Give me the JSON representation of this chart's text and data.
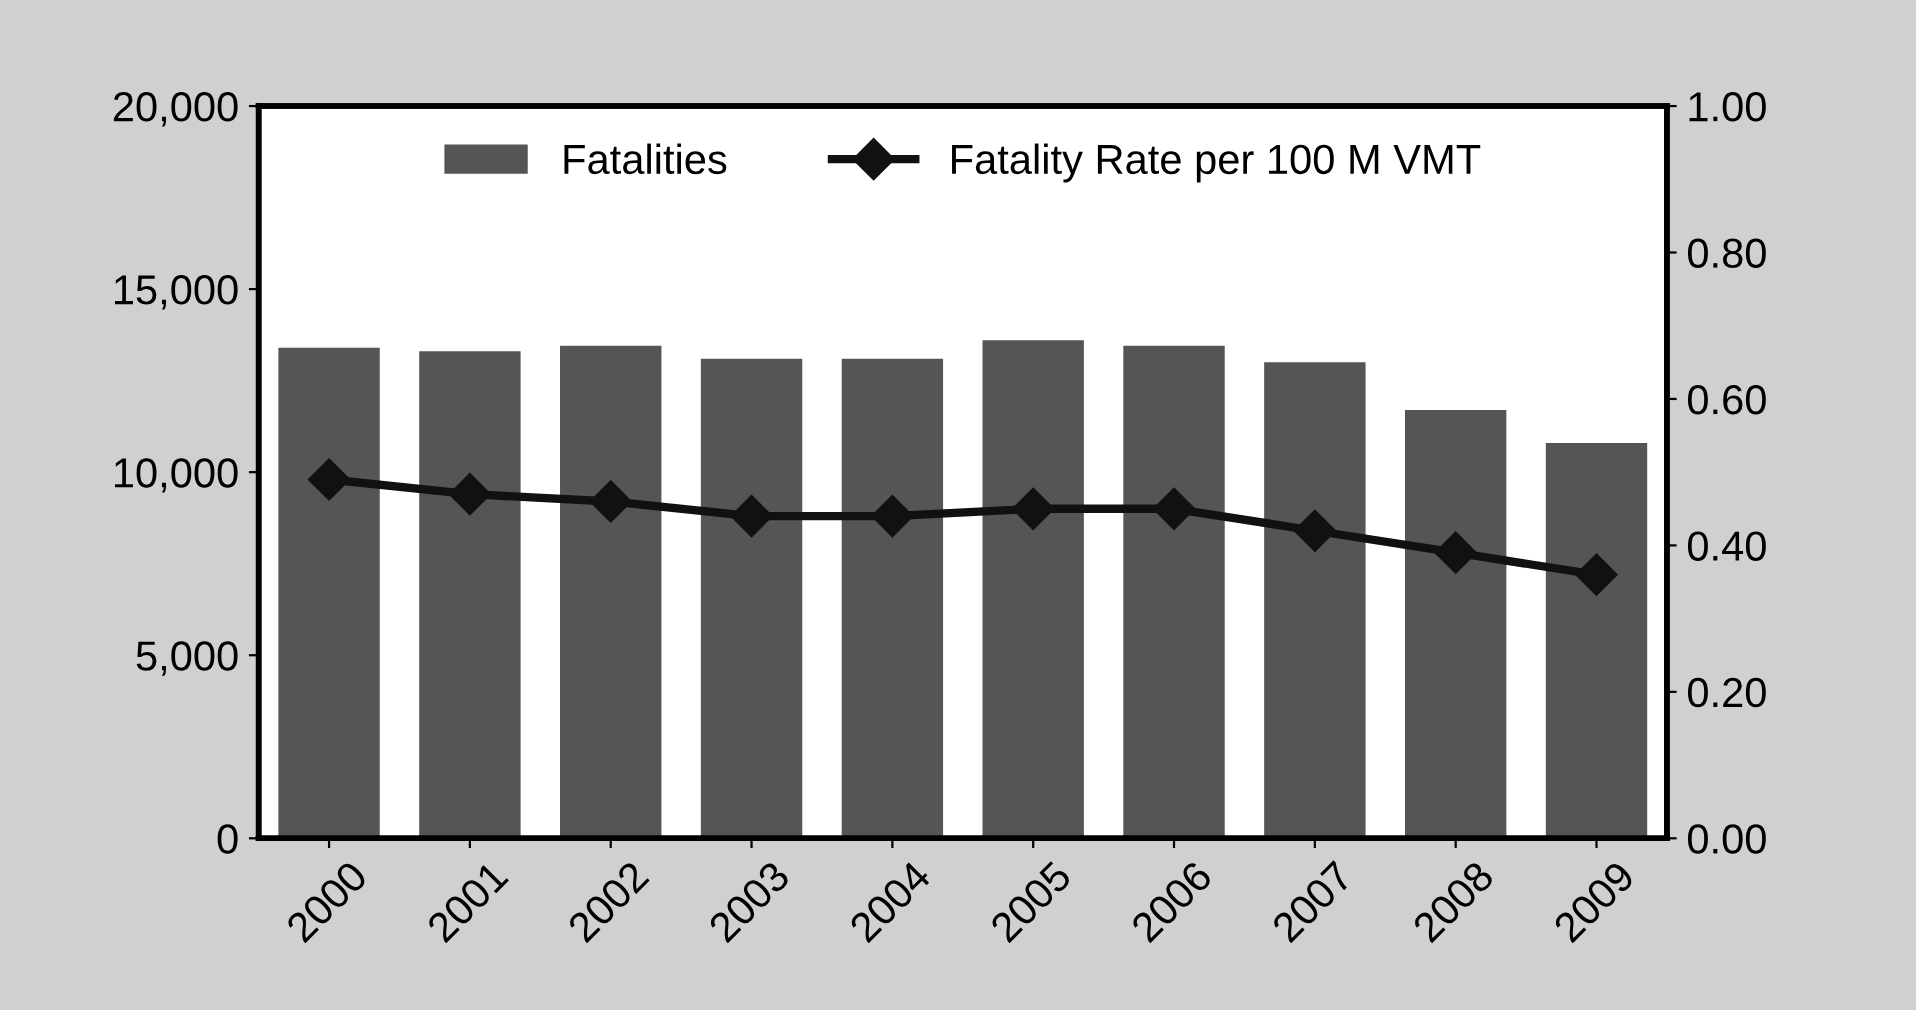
{
  "chart_data": {
    "type": "bar",
    "categories": [
      "2000",
      "2001",
      "2002",
      "2003",
      "2004",
      "2005",
      "2006",
      "2007",
      "2008",
      "2009"
    ],
    "series": [
      {
        "name": "Fatalities",
        "color": "#555555",
        "values": [
          13400,
          13300,
          13450,
          13100,
          13100,
          13600,
          13450,
          13000,
          11700,
          10800
        ]
      },
      {
        "name": "Fatality Rate per 100 M VMT",
        "type": "line",
        "axis": "y2",
        "color": "#111111",
        "marker": "diamond",
        "values": [
          0.49,
          0.47,
          0.46,
          0.44,
          0.44,
          0.45,
          0.45,
          0.42,
          0.39,
          0.36
        ]
      }
    ],
    "ylim": [
      0,
      20000
    ],
    "yticks": [
      {
        "value": 0,
        "label": "0"
      },
      {
        "value": 5000,
        "label": "5,000"
      },
      {
        "value": 10000,
        "label": "10,000"
      },
      {
        "value": 15000,
        "label": "15,000"
      },
      {
        "value": 20000,
        "label": "20,000"
      }
    ],
    "y2lim": [
      0,
      1
    ],
    "y2ticks": [
      {
        "value": 0,
        "label": "0.00"
      },
      {
        "value": 0.2,
        "label": "0.20"
      },
      {
        "value": 0.4,
        "label": "0.40"
      },
      {
        "value": 0.6,
        "label": "0.60"
      },
      {
        "value": 0.8,
        "label": "0.80"
      },
      {
        "value": 1,
        "label": "1.00"
      }
    ],
    "legend": "top",
    "grid": false
  }
}
